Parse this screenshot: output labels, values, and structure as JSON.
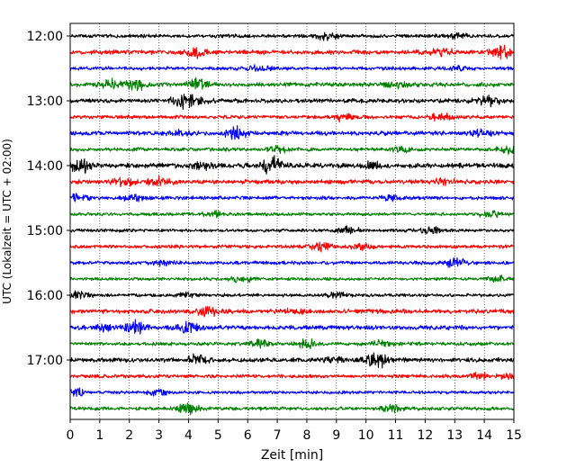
{
  "chart_data": {
    "type": "line",
    "title": "",
    "xlabel": "Zeit  [min]",
    "ylabel": "UTC (Lokalzeit = UTC + 02:00)",
    "xlim": [
      0,
      15
    ],
    "x_ticks": [
      "0",
      "1",
      "2",
      "3",
      "4",
      "5",
      "6",
      "7",
      "8",
      "9",
      "10",
      "11",
      "12",
      "13",
      "14",
      "15"
    ],
    "y_ticks": [
      "12:00",
      "13:00",
      "14:00",
      "15:00",
      "16:00",
      "17:00"
    ],
    "grid": "vertical dotted lines at each minute",
    "trace_interval_minutes": 15,
    "trace_colors": [
      "#000000",
      "#ff0000",
      "#0000ff",
      "#008000"
    ],
    "series": [
      {
        "start": "12:00",
        "color": "#000000",
        "amplitude": 0.25,
        "bursts": [
          {
            "t": 8.7,
            "a": 0.5
          },
          {
            "t": 13.1,
            "a": 0.3
          }
        ]
      },
      {
        "start": "12:15",
        "color": "#ff0000",
        "amplitude": 0.3,
        "bursts": [
          {
            "t": 4.3,
            "a": 0.6
          },
          {
            "t": 12.6,
            "a": 0.4
          },
          {
            "t": 14.6,
            "a": 0.7
          }
        ]
      },
      {
        "start": "12:30",
        "color": "#0000ff",
        "amplitude": 0.25,
        "bursts": [
          {
            "t": 6.4,
            "a": 0.3
          },
          {
            "t": 13.1,
            "a": 0.3
          }
        ]
      },
      {
        "start": "12:45",
        "color": "#008000",
        "amplitude": 0.3,
        "bursts": [
          {
            "t": 1.3,
            "a": 0.6
          },
          {
            "t": 2.2,
            "a": 0.9
          },
          {
            "t": 4.3,
            "a": 0.8
          },
          {
            "t": 11.0,
            "a": 0.4
          }
        ]
      },
      {
        "start": "13:00",
        "color": "#000000",
        "amplitude": 0.3,
        "bursts": [
          {
            "t": 3.8,
            "a": 0.8
          },
          {
            "t": 4.3,
            "a": 0.5
          },
          {
            "t": 14.1,
            "a": 0.7
          }
        ]
      },
      {
        "start": "13:15",
        "color": "#ff0000",
        "amplitude": 0.25,
        "bursts": [
          {
            "t": 9.2,
            "a": 0.5
          },
          {
            "t": 12.5,
            "a": 0.6
          }
        ]
      },
      {
        "start": "13:30",
        "color": "#0000ff",
        "amplitude": 0.3,
        "bursts": [
          {
            "t": 5.6,
            "a": 0.7
          },
          {
            "t": 3.7,
            "a": 0.3
          },
          {
            "t": 13.9,
            "a": 0.4
          }
        ]
      },
      {
        "start": "13:45",
        "color": "#008000",
        "amplitude": 0.25,
        "bursts": [
          {
            "t": 7.0,
            "a": 0.4
          },
          {
            "t": 11.2,
            "a": 0.3
          },
          {
            "t": 14.8,
            "a": 0.5
          }
        ]
      },
      {
        "start": "14:00",
        "color": "#000000",
        "amplitude": 0.35,
        "bursts": [
          {
            "t": 0.3,
            "a": 0.9
          },
          {
            "t": 4.5,
            "a": 0.6
          },
          {
            "t": 6.8,
            "a": 1.2
          },
          {
            "t": 10.2,
            "a": 0.4
          }
        ]
      },
      {
        "start": "14:15",
        "color": "#ff0000",
        "amplitude": 0.3,
        "bursts": [
          {
            "t": 1.8,
            "a": 0.5
          },
          {
            "t": 3.0,
            "a": 0.6
          },
          {
            "t": 12.6,
            "a": 0.5
          }
        ]
      },
      {
        "start": "14:30",
        "color": "#0000ff",
        "amplitude": 0.25,
        "bursts": [
          {
            "t": 0.2,
            "a": 0.5
          },
          {
            "t": 2.1,
            "a": 0.5
          },
          {
            "t": 10.8,
            "a": 0.3
          }
        ]
      },
      {
        "start": "14:45",
        "color": "#008000",
        "amplitude": 0.22,
        "bursts": [
          {
            "t": 4.9,
            "a": 0.4
          },
          {
            "t": 14.2,
            "a": 0.5
          }
        ]
      },
      {
        "start": "15:00",
        "color": "#000000",
        "amplitude": 0.22,
        "bursts": [
          {
            "t": 9.4,
            "a": 0.5
          },
          {
            "t": 12.2,
            "a": 0.4
          }
        ]
      },
      {
        "start": "15:15",
        "color": "#ff0000",
        "amplitude": 0.25,
        "bursts": [
          {
            "t": 8.5,
            "a": 0.6
          },
          {
            "t": 9.8,
            "a": 0.3
          }
        ]
      },
      {
        "start": "15:30",
        "color": "#0000ff",
        "amplitude": 0.25,
        "bursts": [
          {
            "t": 3.1,
            "a": 0.3
          },
          {
            "t": 13.0,
            "a": 0.6
          }
        ]
      },
      {
        "start": "15:45",
        "color": "#008000",
        "amplitude": 0.22,
        "bursts": [
          {
            "t": 5.8,
            "a": 0.4
          },
          {
            "t": 14.5,
            "a": 0.4
          }
        ]
      },
      {
        "start": "16:00",
        "color": "#000000",
        "amplitude": 0.22,
        "bursts": [
          {
            "t": 0.3,
            "a": 0.5
          },
          {
            "t": 4.0,
            "a": 0.3
          },
          {
            "t": 9.0,
            "a": 0.3
          }
        ]
      },
      {
        "start": "16:15",
        "color": "#ff0000",
        "amplitude": 0.3,
        "bursts": [
          {
            "t": 4.6,
            "a": 0.7
          },
          {
            "t": 7.6,
            "a": 0.3
          }
        ]
      },
      {
        "start": "16:30",
        "color": "#0000ff",
        "amplitude": 0.3,
        "bursts": [
          {
            "t": 2.2,
            "a": 0.9
          },
          {
            "t": 4.0,
            "a": 0.6
          },
          {
            "t": 1.2,
            "a": 0.4
          }
        ]
      },
      {
        "start": "16:45",
        "color": "#008000",
        "amplitude": 0.25,
        "bursts": [
          {
            "t": 6.4,
            "a": 0.5
          },
          {
            "t": 8.0,
            "a": 0.5
          },
          {
            "t": 10.5,
            "a": 0.4
          }
        ]
      },
      {
        "start": "17:00",
        "color": "#000000",
        "amplitude": 0.3,
        "bursts": [
          {
            "t": 4.3,
            "a": 0.6
          },
          {
            "t": 8.8,
            "a": 0.4
          },
          {
            "t": 10.4,
            "a": 1.1
          }
        ]
      },
      {
        "start": "17:15",
        "color": "#ff0000",
        "amplitude": 0.25,
        "bursts": [
          {
            "t": 13.8,
            "a": 0.4
          },
          {
            "t": 14.8,
            "a": 0.3
          }
        ]
      },
      {
        "start": "17:30",
        "color": "#0000ff",
        "amplitude": 0.22,
        "bursts": [
          {
            "t": 0.2,
            "a": 0.4
          },
          {
            "t": 3.0,
            "a": 0.4
          }
        ]
      },
      {
        "start": "17:45",
        "color": "#008000",
        "amplitude": 0.25,
        "bursts": [
          {
            "t": 4.0,
            "a": 0.6
          },
          {
            "t": 10.8,
            "a": 0.4
          }
        ]
      }
    ]
  }
}
